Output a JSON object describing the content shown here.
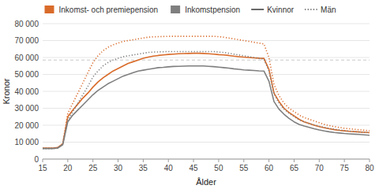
{
  "chart_data": {
    "type": "line",
    "xlabel": "Ålder",
    "ylabel": "Kronor",
    "x": [
      15,
      16,
      17,
      18,
      19,
      20,
      21,
      22,
      23,
      24,
      25,
      26,
      27,
      28,
      29,
      30,
      31,
      32,
      33,
      34,
      35,
      36,
      37,
      38,
      39,
      40,
      41,
      42,
      43,
      44,
      45,
      46,
      47,
      48,
      49,
      50,
      51,
      52,
      53,
      54,
      55,
      56,
      57,
      58,
      59,
      60,
      61,
      62,
      63,
      64,
      65,
      66,
      67,
      68,
      69,
      70,
      71,
      72,
      73,
      74,
      75,
      76,
      77,
      78,
      79,
      80
    ],
    "series": [
      {
        "color": "#D96B2A",
        "line_style": "solid",
        "values": [
          6500,
          6500,
          6500,
          6800,
          9000,
          25000,
          29000,
          32500,
          36000,
          39000,
          42500,
          45500,
          48000,
          50000,
          52000,
          53500,
          55000,
          56500,
          57500,
          58500,
          59500,
          60200,
          60800,
          61200,
          61500,
          61800,
          62000,
          62200,
          62300,
          62400,
          62500,
          62500,
          62400,
          62200,
          62000,
          61700,
          61500,
          61200,
          60800,
          60500,
          60200,
          60000,
          59800,
          59600,
          59500,
          53000,
          39000,
          34000,
          30000,
          27500,
          25500,
          23500,
          22000,
          21000,
          20000,
          19200,
          18500,
          17900,
          17400,
          17000,
          16700,
          16400,
          16200,
          16000,
          15800,
          15600
        ]
      },
      {
        "color": "#D96B2A",
        "line_style": "dotted",
        "values": [
          6500,
          6500,
          6500,
          6800,
          9200,
          27000,
          33000,
          39000,
          45000,
          51000,
          57000,
          61000,
          64000,
          66000,
          67500,
          68500,
          69500,
          70000,
          70500,
          71000,
          71500,
          72000,
          72200,
          72300,
          72400,
          72500,
          72500,
          72500,
          72500,
          72500,
          72500,
          72500,
          72500,
          72500,
          72500,
          72300,
          72000,
          71500,
          71000,
          70500,
          70000,
          69500,
          69000,
          68500,
          68000,
          60000,
          44000,
          37500,
          33000,
          30000,
          28000,
          26000,
          24500,
          23500,
          22500,
          21500,
          20500,
          19800,
          19200,
          18700,
          18200,
          17900,
          17600,
          17300,
          17000,
          16700
        ]
      },
      {
        "color": "#7F7F7F",
        "line_style": "solid",
        "values": [
          6200,
          6200,
          6200,
          6500,
          8500,
          22000,
          26000,
          29000,
          32000,
          35000,
          38000,
          40500,
          42500,
          44500,
          46000,
          47500,
          49000,
          50000,
          51000,
          52000,
          52500,
          53000,
          53500,
          54000,
          54200,
          54500,
          54700,
          54800,
          54900,
          55000,
          55000,
          55000,
          55000,
          54800,
          54600,
          54300,
          54000,
          53700,
          53300,
          53000,
          52700,
          52500,
          52300,
          52100,
          52000,
          46000,
          34000,
          29500,
          26500,
          24000,
          22000,
          20500,
          19500,
          18700,
          17900,
          17200,
          16600,
          16100,
          15700,
          15400,
          15100,
          14900,
          14700,
          14500,
          14300,
          14100
        ]
      },
      {
        "color": "#7F7F7F",
        "line_style": "dotted",
        "values": [
          6200,
          6200,
          6200,
          6500,
          8800,
          23000,
          28000,
          33000,
          38000,
          43000,
          48500,
          52000,
          55000,
          57000,
          58500,
          59500,
          60500,
          61000,
          61500,
          62000,
          62500,
          63000,
          63200,
          63300,
          63400,
          63500,
          63500,
          63500,
          63500,
          63500,
          63500,
          63500,
          63500,
          63500,
          63500,
          63200,
          63000,
          62500,
          62000,
          61500,
          61000,
          60500,
          60000,
          59500,
          59000,
          52000,
          38500,
          33000,
          29500,
          27000,
          25000,
          23200,
          22000,
          21000,
          20200,
          19400,
          18700,
          18100,
          17600,
          17200,
          16800,
          16500,
          16200,
          16000,
          15800,
          15600
        ]
      }
    ],
    "reference_lines": [
      {
        "value": 58500,
        "color": "#C8C8C8",
        "line_style": "dashed"
      }
    ],
    "legend_entries": [
      {
        "name": "Inkomst- och premiepension",
        "color": "#D96B2A"
      },
      {
        "name": "Inkomstpension",
        "color": "#7F7F7F"
      },
      {
        "name": "Kvinnor",
        "color": "#444444",
        "line_style": "solid"
      },
      {
        "name": "Män",
        "color": "#444444",
        "line_style": "dotted"
      }
    ],
    "legend": "top",
    "xlim": [
      15,
      80
    ],
    "xticks": [
      15,
      20,
      25,
      30,
      35,
      40,
      45,
      50,
      55,
      60,
      65,
      70,
      75,
      80
    ],
    "ylim": [
      0,
      80000
    ],
    "yticks": [
      0,
      {
        "value": 10000,
        "label": "10 000"
      },
      {
        "value": 20000,
        "label": "20 000"
      },
      {
        "value": 30000,
        "label": "30 000"
      },
      {
        "value": 40000,
        "label": "40 000"
      },
      {
        "value": 50000,
        "label": "50 000"
      },
      {
        "value": 60000,
        "label": "60 000"
      },
      {
        "value": 70000,
        "label": "70 000"
      },
      {
        "value": 80000,
        "label": "80 000"
      }
    ],
    "grid": true
  }
}
